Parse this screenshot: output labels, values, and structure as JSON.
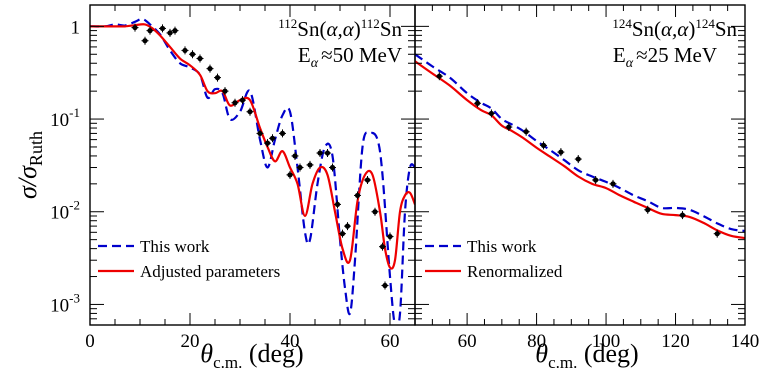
{
  "y_axis_label": "σ/σRuth",
  "y_axis_label_main": "σ/σ",
  "y_axis_label_sub": "Ruth",
  "chart_data": [
    {
      "type": "scatter",
      "reaction": {
        "pre": "112",
        "el1": "Sn(",
        "mid": "α,α",
        "post": ")",
        "pre2": "112",
        "el2": "Sn"
      },
      "energy": {
        "main": "E",
        "sub": "α",
        "value": "≈50 MeV"
      },
      "xlabel": {
        "main": "θ",
        "sub": "c.m.",
        "unit": " (deg)"
      },
      "xlim": [
        0,
        65
      ],
      "ylim": [
        0.0006,
        1.7
      ],
      "yscale": "log",
      "xticks": [
        "0",
        "20",
        "40",
        "60"
      ],
      "yticks": [
        {
          "base": "1"
        },
        {
          "base": "10",
          "exp": "-1"
        },
        {
          "base": "10",
          "exp": "-2"
        },
        {
          "base": "10",
          "exp": "-3"
        }
      ],
      "legend": [
        "This work",
        "Adjusted parameters"
      ],
      "legend_placement": "bottom-left",
      "series": [
        {
          "name": "This work",
          "style": "dashed",
          "color": "#0000cc",
          "x": [
            0,
            3,
            5,
            7,
            9,
            10.5,
            12,
            14,
            16,
            18,
            20,
            22,
            23.5,
            25,
            26.5,
            28,
            30,
            32,
            34,
            35.5,
            37,
            38.5,
            40,
            41.5,
            43,
            44,
            45.5,
            47,
            48.5,
            50,
            51,
            52,
            53,
            54.5,
            56,
            57.5,
            58.5,
            60,
            61,
            62,
            63,
            64,
            65
          ],
          "y": [
            1.0,
            1.0,
            1.05,
            1.02,
            1.12,
            1.2,
            1.05,
            0.82,
            0.55,
            0.4,
            0.36,
            0.3,
            0.17,
            0.21,
            0.19,
            0.1,
            0.12,
            0.2,
            0.06,
            0.03,
            0.06,
            0.11,
            0.12,
            0.03,
            0.006,
            0.005,
            0.02,
            0.05,
            0.04,
            0.005,
            0.0015,
            0.0008,
            0.003,
            0.05,
            0.07,
            0.06,
            0.025,
            0.002,
            0.0006,
            0.0008,
            0.01,
            0.03,
            0.03
          ]
        },
        {
          "name": "Adjusted parameters",
          "style": "solid",
          "color": "#ee0000",
          "x": [
            0,
            3,
            5,
            7,
            9,
            11,
            12.5,
            14,
            16,
            18,
            20,
            22,
            23.5,
            25,
            26.5,
            28,
            30,
            32,
            34,
            35.5,
            37,
            38.5,
            40,
            41.5,
            43,
            44.5,
            46,
            47.5,
            49,
            50.5,
            52,
            53.5,
            55,
            56.5,
            58,
            59,
            60,
            61,
            62,
            63,
            64,
            65
          ],
          "y": [
            1.0,
            1.0,
            1.0,
            1.0,
            1.03,
            1.05,
            0.95,
            0.8,
            0.6,
            0.45,
            0.38,
            0.3,
            0.2,
            0.19,
            0.2,
            0.14,
            0.16,
            0.16,
            0.08,
            0.05,
            0.035,
            0.045,
            0.03,
            0.02,
            0.009,
            0.02,
            0.03,
            0.025,
            0.01,
            0.004,
            0.003,
            0.013,
            0.025,
            0.025,
            0.01,
            0.004,
            0.0025,
            0.003,
            0.01,
            0.015,
            0.016,
            0.012
          ]
        },
        {
          "name": "data",
          "style": "points",
          "color": "#000000",
          "x": [
            9,
            11,
            12,
            14.5,
            16,
            17,
            19,
            20.5,
            22,
            24,
            25.5,
            27,
            29,
            30.5,
            32,
            34,
            35.5,
            36.5,
            38.5,
            40,
            41,
            42,
            44,
            46,
            47.5,
            48.5,
            49.5,
            50.5,
            51.5,
            53.5,
            55.5,
            57,
            58.5,
            59,
            60
          ],
          "y": [
            0.97,
            0.7,
            0.9,
            0.95,
            0.85,
            0.9,
            0.55,
            0.5,
            0.45,
            0.35,
            0.28,
            0.2,
            0.15,
            0.16,
            0.12,
            0.07,
            0.055,
            0.062,
            0.07,
            0.025,
            0.04,
            0.03,
            0.032,
            0.043,
            0.043,
            0.03,
            0.012,
            0.0058,
            0.007,
            0.015,
            0.022,
            0.01,
            0.0042,
            0.0016,
            0.0054
          ]
        }
      ]
    },
    {
      "type": "scatter",
      "reaction": {
        "pre": "124",
        "el1": "Sn(",
        "mid": "α,α",
        "post": ")",
        "pre2": "124",
        "el2": "Sn"
      },
      "energy": {
        "main": "E",
        "sub": "α",
        "value": "≈25 MeV"
      },
      "xlabel": {
        "main": "θ",
        "sub": "c.m.",
        "unit": " (deg)"
      },
      "xlim": [
        45,
        140
      ],
      "ylim": [
        0.0006,
        1.7
      ],
      "yscale": "log",
      "xticks": [
        "60",
        "80",
        "100",
        "120",
        "140"
      ],
      "legend": [
        "This work",
        "Renormalized"
      ],
      "legend_placement": "bottom-left",
      "series": [
        {
          "name": "This work",
          "style": "dashed",
          "color": "#0000cc",
          "x": [
            45,
            50,
            55,
            60,
            64,
            67,
            70,
            73,
            76,
            80,
            84,
            88,
            92,
            96,
            100,
            104,
            108,
            112,
            116,
            120,
            124,
            128,
            132,
            136,
            140
          ],
          "y": [
            0.5,
            0.37,
            0.28,
            0.19,
            0.15,
            0.13,
            0.1,
            0.087,
            0.075,
            0.058,
            0.046,
            0.036,
            0.028,
            0.024,
            0.021,
            0.018,
            0.015,
            0.013,
            0.011,
            0.011,
            0.0105,
            0.009,
            0.0075,
            0.0065,
            0.0062
          ]
        },
        {
          "name": "Renormalized",
          "style": "solid",
          "color": "#ee0000",
          "x": [
            45,
            50,
            55,
            60,
            64,
            67,
            70,
            73,
            76,
            80,
            84,
            88,
            92,
            96,
            100,
            104,
            108,
            112,
            116,
            120,
            124,
            128,
            132,
            136,
            140
          ],
          "y": [
            0.42,
            0.31,
            0.23,
            0.16,
            0.125,
            0.11,
            0.085,
            0.074,
            0.063,
            0.049,
            0.039,
            0.031,
            0.024,
            0.02,
            0.018,
            0.015,
            0.0128,
            0.011,
            0.0095,
            0.0092,
            0.0088,
            0.0076,
            0.0063,
            0.0055,
            0.0052
          ]
        },
        {
          "name": "data",
          "style": "points",
          "color": "#000000",
          "x": [
            52,
            63,
            67,
            72,
            77,
            82,
            87,
            92,
            97,
            102,
            112,
            122,
            132
          ],
          "y": [
            0.29,
            0.148,
            0.115,
            0.082,
            0.073,
            0.052,
            0.044,
            0.037,
            0.022,
            0.02,
            0.0105,
            0.0092,
            0.0058
          ]
        }
      ]
    }
  ]
}
